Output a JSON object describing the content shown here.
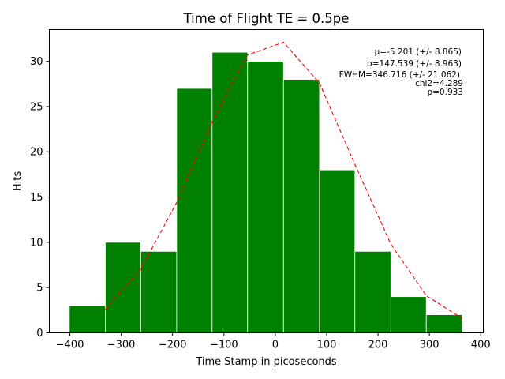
{
  "chart_data": {
    "type": "bar",
    "title": "Time of Flight TE = 0.5pe",
    "xlabel": "Time Stamp in picoseconds",
    "ylabel": "Hits",
    "xlim": [
      -440,
      405
    ],
    "ylim": [
      0,
      33.5
    ],
    "xticks": [
      -400,
      -300,
      -200,
      -100,
      0,
      100,
      200,
      300,
      400
    ],
    "yticks": [
      0,
      5,
      10,
      15,
      20,
      25,
      30
    ],
    "bar_color": "#008000",
    "bar_edge_color": "#ffffff",
    "fit_color": "#ff0000",
    "bins": [
      {
        "start": -401,
        "end": -331,
        "count": 3
      },
      {
        "start": -331,
        "end": -262,
        "count": 10
      },
      {
        "start": -262,
        "end": -192,
        "count": 9
      },
      {
        "start": -192,
        "end": -123,
        "count": 27
      },
      {
        "start": -123,
        "end": -54,
        "count": 31
      },
      {
        "start": -54,
        "end": 16,
        "count": 30
      },
      {
        "start": 16,
        "end": 86,
        "count": 28
      },
      {
        "start": 86,
        "end": 155,
        "count": 18
      },
      {
        "start": 155,
        "end": 225,
        "count": 9
      },
      {
        "start": 225,
        "end": 294,
        "count": 4
      },
      {
        "start": 294,
        "end": 364,
        "count": 2
      }
    ],
    "fit_series": {
      "style": "dashed",
      "x": [
        -331,
        -262,
        -192,
        -123,
        -54,
        16,
        86,
        155,
        225,
        294,
        364
      ],
      "y": [
        2.6,
        7.0,
        14.4,
        23.3,
        30.7,
        32.1,
        27.6,
        18.6,
        9.8,
        4.1,
        1.6
      ]
    },
    "annotations": [
      "μ=-5.201 (+/- 8.865)",
      "σ=147.539 (+/- 8.963)",
      "FWHM=346.716 (+/- 21.062)",
      "chi2=4.289",
      "p=0.933"
    ]
  }
}
